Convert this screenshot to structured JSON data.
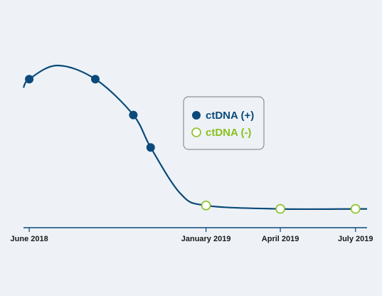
{
  "chart_data": {
    "type": "line",
    "title": "",
    "xlabel": "",
    "ylabel": "",
    "x_ticks": [
      "June 2018",
      "January 2019",
      "April 2019",
      "July 2019"
    ],
    "x_tick_dates": [
      "2018-06-01",
      "2019-01-01",
      "2019-04-01",
      "2019-07-01"
    ],
    "xlim": [
      "2018-05-25",
      "2019-07-15"
    ],
    "y_axis_visible": false,
    "grid": false,
    "legend_position": "center-right",
    "series": [
      {
        "name": "ctDNA (+)",
        "marker": "filled-circle",
        "color": "#0b4a7a",
        "points": [
          {
            "x": "2018-06-01",
            "y": 0.87
          },
          {
            "x": "2018-08-20",
            "y": 0.87
          },
          {
            "x": "2018-10-05",
            "y": 0.66
          },
          {
            "x": "2018-10-26",
            "y": 0.47
          }
        ]
      },
      {
        "name": "ctDNA (-)",
        "marker": "open-circle",
        "color": "#8ac01e",
        "points": [
          {
            "x": "2019-01-01",
            "y": 0.13
          },
          {
            "x": "2019-04-01",
            "y": 0.11
          },
          {
            "x": "2019-07-01",
            "y": 0.11
          }
        ]
      }
    ],
    "trend_line": {
      "color": "#0b4a7a",
      "points": [
        {
          "x": "2018-05-25",
          "y": 0.82
        },
        {
          "x": "2018-06-01",
          "y": 0.87
        },
        {
          "x": "2018-07-05",
          "y": 0.95
        },
        {
          "x": "2018-08-20",
          "y": 0.87
        },
        {
          "x": "2018-10-05",
          "y": 0.66
        },
        {
          "x": "2018-10-26",
          "y": 0.47
        },
        {
          "x": "2018-12-01",
          "y": 0.2
        },
        {
          "x": "2019-01-01",
          "y": 0.13
        },
        {
          "x": "2019-04-01",
          "y": 0.11
        },
        {
          "x": "2019-07-01",
          "y": 0.11
        },
        {
          "x": "2019-07-15",
          "y": 0.11
        }
      ]
    }
  }
}
